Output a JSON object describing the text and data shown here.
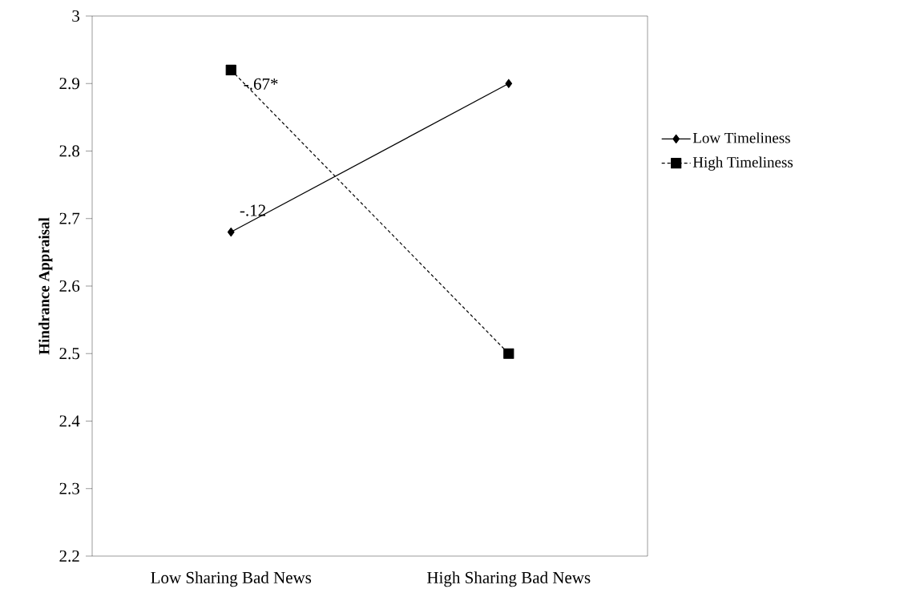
{
  "chart_data": {
    "type": "line",
    "ylabel": "Hindrance Appraisal",
    "categories": [
      "Low Sharing Bad News",
      "High Sharing Bad News"
    ],
    "series": [
      {
        "name": "Low Timeliness",
        "color": "#000000",
        "values": [
          2.68,
          2.9
        ],
        "marker": "diamond",
        "line_style": "solid"
      },
      {
        "name": "High Timeliness",
        "color": "#000000",
        "values": [
          2.92,
          2.5
        ],
        "marker": "square",
        "line_style": "dashed"
      }
    ],
    "ylim": [
      2.2,
      3
    ],
    "yticks": [
      2.2,
      2.3,
      2.4,
      2.5,
      2.6,
      2.7,
      2.8,
      2.9,
      3
    ],
    "annotations": [
      "-.67*",
      "-.12"
    ],
    "legend": "right",
    "grid": false
  }
}
